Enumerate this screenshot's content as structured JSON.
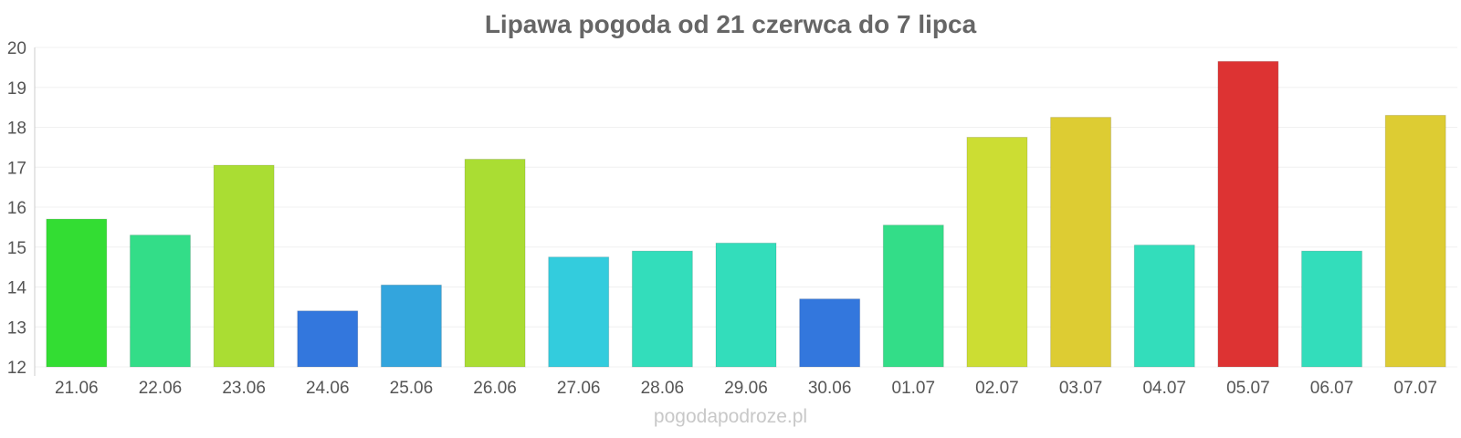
{
  "chart_data": {
    "type": "bar",
    "title": "Lipawa pogoda od 21 czerwca do 7 lipca",
    "xlabel": "",
    "ylabel": "",
    "ylim": [
      12,
      20
    ],
    "yticks": [
      12,
      13,
      14,
      15,
      16,
      17,
      18,
      19,
      20
    ],
    "grid": true,
    "legend": "none",
    "categories": [
      "21.06",
      "22.06",
      "23.06",
      "24.06",
      "25.06",
      "26.06",
      "27.06",
      "28.06",
      "29.06",
      "30.06",
      "01.07",
      "02.07",
      "03.07",
      "04.07",
      "05.07",
      "06.07",
      "07.07"
    ],
    "values": [
      15.7,
      15.3,
      17.05,
      13.4,
      14.05,
      17.2,
      14.75,
      14.9,
      15.1,
      13.7,
      15.55,
      17.75,
      18.25,
      15.05,
      19.65,
      14.9,
      18.3
    ],
    "colors": [
      "#33dd33",
      "#33dd88",
      "#aadd33",
      "#3377dd",
      "#33a5dd",
      "#aadd33",
      "#33ccdd",
      "#33ddbb",
      "#33ddbb",
      "#3377dd",
      "#33dd88",
      "#ccdd33",
      "#ddcc33",
      "#33ddbb",
      "#dd3333",
      "#33ddbb",
      "#ddcc33"
    ]
  },
  "watermark": "pogodapodroze.pl"
}
